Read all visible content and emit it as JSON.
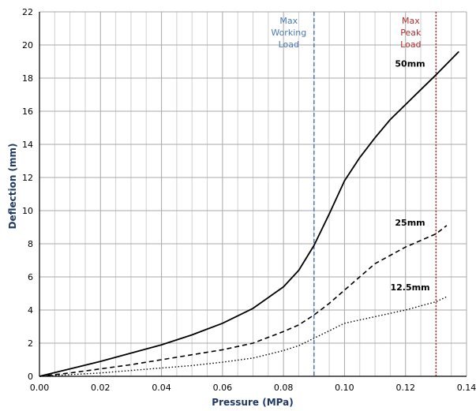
{
  "chart_data": {
    "type": "line",
    "title": "",
    "xlabel": "Pressure (MPa)",
    "ylabel": "Deflection (mm)",
    "xlim": [
      0,
      0.14
    ],
    "ylim": [
      0,
      22
    ],
    "x_ticks": [
      "0.00",
      "0.02",
      "0.04",
      "0.06",
      "0.08",
      "0.10",
      "0.12",
      "0.14"
    ],
    "y_ticks": [
      "0",
      "2",
      "4",
      "6",
      "8",
      "10",
      "12",
      "14",
      "16",
      "18",
      "20",
      "22"
    ],
    "x_tick_values": [
      0,
      0.02,
      0.04,
      0.06,
      0.08,
      0.1,
      0.12,
      0.14
    ],
    "y_tick_values": [
      0,
      2,
      4,
      6,
      8,
      10,
      12,
      14,
      16,
      18,
      20,
      22
    ],
    "grid": true,
    "series": [
      {
        "name": "50mm",
        "style": "solid",
        "color": "#000000",
        "points": [
          [
            0,
            0
          ],
          [
            0.01,
            0.45
          ],
          [
            0.02,
            0.9
          ],
          [
            0.03,
            1.4
          ],
          [
            0.04,
            1.9
          ],
          [
            0.05,
            2.5
          ],
          [
            0.06,
            3.2
          ],
          [
            0.07,
            4.1
          ],
          [
            0.08,
            5.4
          ],
          [
            0.085,
            6.4
          ],
          [
            0.09,
            7.9
          ],
          [
            0.095,
            9.8
          ],
          [
            0.1,
            11.8
          ],
          [
            0.105,
            13.2
          ],
          [
            0.11,
            14.4
          ],
          [
            0.115,
            15.5
          ],
          [
            0.12,
            16.4
          ],
          [
            0.125,
            17.3
          ],
          [
            0.13,
            18.2
          ],
          [
            0.1375,
            19.6
          ]
        ]
      },
      {
        "name": "25mm",
        "style": "dashed",
        "color": "#000000",
        "points": [
          [
            0,
            0
          ],
          [
            0.01,
            0.2
          ],
          [
            0.02,
            0.45
          ],
          [
            0.03,
            0.7
          ],
          [
            0.04,
            1.0
          ],
          [
            0.05,
            1.3
          ],
          [
            0.06,
            1.6
          ],
          [
            0.07,
            2.0
          ],
          [
            0.08,
            2.7
          ],
          [
            0.085,
            3.1
          ],
          [
            0.09,
            3.7
          ],
          [
            0.095,
            4.4
          ],
          [
            0.1,
            5.2
          ],
          [
            0.105,
            6.0
          ],
          [
            0.11,
            6.8
          ],
          [
            0.12,
            7.8
          ],
          [
            0.13,
            8.6
          ],
          [
            0.1335,
            9.1
          ]
        ]
      },
      {
        "name": "12.5mm",
        "style": "dotted",
        "color": "#000000",
        "points": [
          [
            0,
            0
          ],
          [
            0.01,
            0.1
          ],
          [
            0.02,
            0.2
          ],
          [
            0.03,
            0.35
          ],
          [
            0.04,
            0.5
          ],
          [
            0.05,
            0.65
          ],
          [
            0.06,
            0.85
          ],
          [
            0.07,
            1.1
          ],
          [
            0.08,
            1.55
          ],
          [
            0.085,
            1.85
          ],
          [
            0.09,
            2.3
          ],
          [
            0.095,
            2.75
          ],
          [
            0.1,
            3.2
          ],
          [
            0.11,
            3.6
          ],
          [
            0.12,
            4.0
          ],
          [
            0.13,
            4.5
          ],
          [
            0.1335,
            4.8
          ]
        ]
      }
    ],
    "series_labels": [
      {
        "text": "50mm",
        "at": [
          0.1215,
          18.7
        ]
      },
      {
        "text": "25mm",
        "at": [
          0.1215,
          9.1
        ]
      },
      {
        "text": "12.5mm",
        "at": [
          0.1215,
          5.2
        ]
      }
    ],
    "reference_lines": [
      {
        "x": 0.09,
        "label_lines": [
          "Max",
          "Working",
          "Load"
        ],
        "color": "#4a7ab8",
        "style": "dashed"
      },
      {
        "x": 0.13,
        "label_lines": [
          "Max",
          "Peak",
          "Load"
        ],
        "color": "#b03030",
        "style": "dotted"
      }
    ]
  }
}
